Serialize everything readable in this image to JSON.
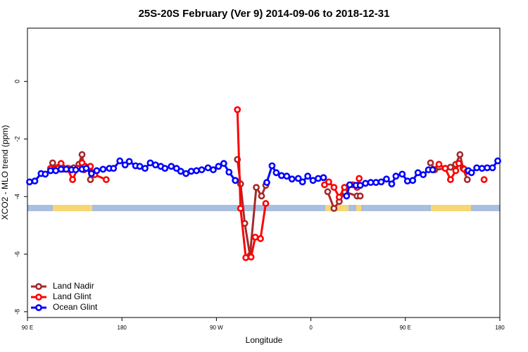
{
  "chart_data": {
    "type": "line",
    "title": "25S-20S February (Ver 9)   2014-09-06 to 2018-12-31",
    "x_label": "Longitude",
    "y_label": "XCO2 - MLO trend (ppm)",
    "xlim": [
      90,
      540
    ],
    "xticks": [
      {
        "value": 90,
        "label": "90 E"
      },
      180,
      {
        "value": 270,
        "label": "90 W"
      },
      {
        "value": 360,
        "label": "0"
      },
      {
        "value": 450,
        "label": "90 E"
      },
      {
        "value": 540,
        "label": "180"
      }
    ],
    "ylim": [
      -8.2,
      1.85
    ],
    "yticks": [
      0,
      -2,
      -4,
      -6,
      -8
    ],
    "legend": "bottom-left",
    "series": [
      {
        "name": "Land Nadir",
        "color": "#a52a2a",
        "x": [
          114,
          119,
          124,
          129,
          134,
          139,
          142,
          144,
          148,
          150,
          null,
          290,
          293,
          297,
          302,
          308,
          313,
          317,
          null,
          376,
          382,
          387,
          392,
          404,
          407,
          null,
          474,
          478,
          488,
          493,
          498,
          502,
          505,
          509
        ],
        "values": [
          -2.83,
          -3.02,
          -3.05,
          -3.02,
          -3.0,
          -2.88,
          -2.54,
          -3.07,
          -3.02,
          -3.41,
          null,
          -2.71,
          -3.56,
          -4.93,
          -6.05,
          -3.68,
          -3.98,
          -3.61,
          null,
          -3.83,
          -4.41,
          -4.17,
          -3.83,
          -3.98,
          -3.98,
          null,
          -2.83,
          -3.07,
          -3.02,
          -2.98,
          -2.88,
          -2.54,
          -3.02,
          -3.41
        ]
      },
      {
        "name": "Land Glint",
        "color": "#ff0000",
        "x": [
          112,
          122,
          128,
          133,
          138,
          142,
          145,
          150,
          154,
          165,
          null,
          290,
          293,
          298,
          303,
          307,
          312,
          317,
          null,
          373,
          377,
          382,
          387,
          392,
          400,
          404,
          406,
          null,
          476,
          482,
          488,
          493,
          498,
          501,
          506,
          509,
          null,
          525
        ],
        "values": [
          -3.02,
          -2.85,
          -3.02,
          -3.41,
          -3.02,
          -2.83,
          -2.95,
          -2.95,
          -3.24,
          -3.41,
          null,
          -0.98,
          -4.41,
          -6.12,
          -6.1,
          -5.41,
          -5.46,
          -4.24,
          null,
          -3.59,
          -3.49,
          -3.68,
          -4.02,
          -3.68,
          -3.59,
          -3.68,
          -3.37,
          null,
          -3.07,
          -2.88,
          -3.02,
          -3.41,
          -3.1,
          -2.85,
          -3.05,
          -3.12,
          null,
          -3.41
        ]
      },
      {
        "name": "Ocean Glint",
        "color": "#0000ff",
        "x": [
          92,
          97,
          103,
          107,
          112,
          117,
          122,
          127,
          132,
          136,
          142,
          146,
          151,
          156,
          162,
          168,
          172,
          178,
          183,
          187,
          193,
          197,
          202,
          207,
          212,
          217,
          221,
          227,
          232,
          236,
          241,
          246,
          251,
          256,
          262,
          267,
          272,
          277,
          282,
          288,
          null,
          318,
          323,
          327,
          332,
          337,
          342,
          348,
          352,
          357,
          362,
          367,
          372,
          null,
          394,
          397,
          403,
          407,
          412,
          417,
          422,
          427,
          432,
          437,
          441,
          447,
          452,
          457,
          462,
          467,
          472,
          476,
          null,
          510,
          513,
          518,
          523,
          528,
          533,
          538
        ],
        "values": [
          -3.49,
          -3.46,
          -3.2,
          -3.22,
          -3.1,
          -3.1,
          -3.05,
          -3.05,
          -3.07,
          -3.07,
          -3.05,
          -3.02,
          -3.2,
          -3.1,
          -3.05,
          -3.02,
          -3.02,
          -2.76,
          -2.9,
          -2.78,
          -2.93,
          -2.95,
          -3.02,
          -2.83,
          -2.9,
          -2.95,
          -3.02,
          -2.95,
          -3.02,
          -3.12,
          -3.2,
          -3.12,
          -3.1,
          -3.07,
          -3.0,
          -3.07,
          -2.95,
          -2.85,
          -3.15,
          -3.44,
          null,
          -3.51,
          -2.93,
          -3.17,
          -3.27,
          -3.29,
          -3.39,
          -3.37,
          -3.49,
          -3.29,
          -3.44,
          -3.37,
          -3.34,
          null,
          -3.98,
          -3.59,
          -3.61,
          -3.61,
          -3.54,
          -3.51,
          -3.51,
          -3.49,
          -3.39,
          -3.56,
          -3.29,
          -3.22,
          -3.46,
          -3.44,
          -3.17,
          -3.24,
          -3.07,
          -3.07,
          null,
          -3.1,
          -3.17,
          -3.0,
          -3.02,
          -3.0,
          -3.0,
          -2.76
        ]
      }
    ]
  }
}
